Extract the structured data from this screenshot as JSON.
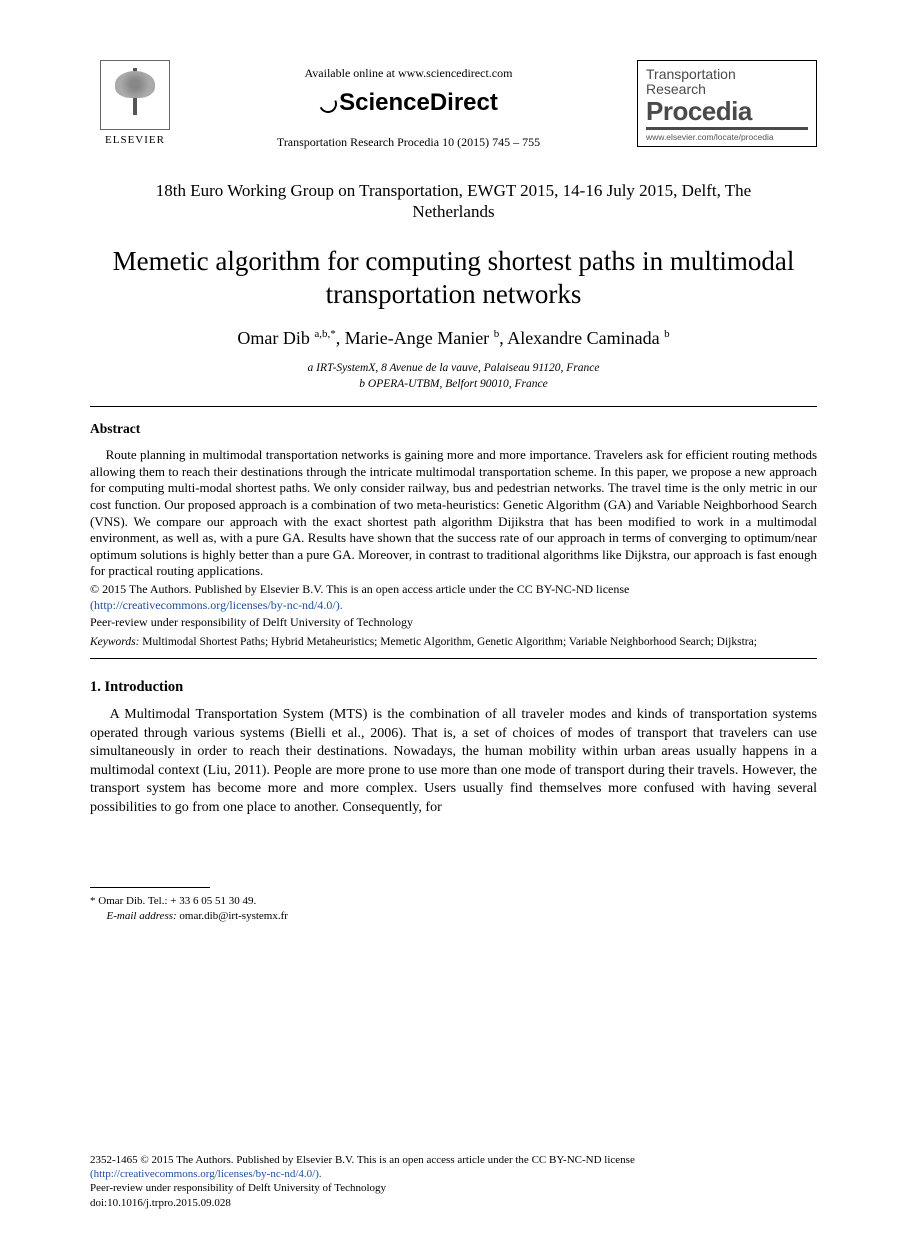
{
  "header": {
    "elsevier_label": "ELSEVIER",
    "available_online": "Available online at www.sciencedirect.com",
    "sciencedirect": "ScienceDirect",
    "journal_ref": "Transportation Research Procedia 10 (2015) 745 – 755",
    "procedia_line1": "Transportation",
    "procedia_line2": "Research",
    "procedia_big": "Procedia",
    "procedia_url": "www.elsevier.com/locate/procedia"
  },
  "conference": "18th Euro Working Group on Transportation, EWGT 2015, 14-16 July 2015, Delft, The Netherlands",
  "title": "Memetic algorithm for computing shortest paths in multimodal transportation networks",
  "authors_html": "Omar Dib <sup>a,b,*</sup>, Marie-Ange Manier <sup>b</sup>, Alexandre Caminada <sup>b</sup>",
  "affiliations": {
    "a": "a IRT-SystemX, 8 Avenue de la vauve, Palaiseau 91120, France",
    "b": "b OPERA-UTBM, Belfort 90010, France"
  },
  "abstract": {
    "heading": "Abstract",
    "body": "Route planning in multimodal transportation networks is gaining more and more importance. Travelers ask for efficient routing methods allowing them to reach their destinations through the intricate multimodal transportation scheme. In this paper, we propose a new approach for computing multi-modal shortest paths. We only consider railway, bus and pedestrian networks. The travel time is the only metric in our cost function. Our proposed approach is a combination of two meta-heuristics: Genetic Algorithm (GA) and Variable Neighborhood Search (VNS). We compare our approach with the exact shortest path algorithm Dijikstra that has been modified to work in a multimodal environment, as well as, with a pure GA. Results have shown that the success rate of our approach in terms of converging to optimum/near optimum solutions is highly better than a pure GA. Moreover, in contrast to traditional algorithms like Dijkstra, our approach is fast enough for practical routing applications."
  },
  "license": {
    "line1": "© 2015 The Authors. Published by Elsevier B.V. This is an open access article under the CC BY-NC-ND license",
    "link_text": "(http://creativecommons.org/licenses/by-nc-nd/4.0/).",
    "link_href": "http://creativecommons.org/licenses/by-nc-nd/4.0/"
  },
  "peer_review": "Peer-review under responsibility of Delft University of Technology",
  "keywords": {
    "label": "Keywords:",
    "text": " Multimodal Shortest Paths; Hybrid Metaheuristics; Memetic Algorithm, Genetic Algorithm; Variable Neighborhood Search; Dijkstra;"
  },
  "section1": {
    "heading": "1. Introduction",
    "body": "A Multimodal Transportation System (MTS) is the combination of all traveler modes and kinds of transportation systems operated through various systems (Bielli et al., 2006). That is, a set of choices of modes of transport that travelers can use simultaneously in order to reach their destinations. Nowadays, the human mobility within urban areas usually happens in a multimodal context (Liu, 2011). People are more prone to use more than one mode of transport during their travels. However, the transport system has become more and more complex. Users usually find themselves more confused with having several possibilities to go from one place to another. Consequently, for"
  },
  "footnote": {
    "corr": "* Omar Dib. Tel.: + 33 6 05 51 30 49.",
    "email_label": "E-mail address:",
    "email": " omar.dib@irt-systemx.fr"
  },
  "footer": {
    "issn_line": "2352-1465 © 2015 The Authors. Published by Elsevier B.V. This is an open access article under the CC BY-NC-ND license",
    "link_text": "(http://creativecommons.org/licenses/by-nc-nd/4.0/).",
    "peer": "Peer-review under responsibility of Delft University of Technology",
    "doi": "doi:10.1016/j.trpro.2015.09.028"
  },
  "colors": {
    "text": "#000000",
    "link": "#1a4fa3",
    "procedia_gray": "#4a4a4a",
    "background": "#ffffff"
  },
  "fonts": {
    "body_family": "Times New Roman",
    "title_size_pt": 20,
    "body_size_pt": 10.5,
    "abstract_size_pt": 10
  }
}
